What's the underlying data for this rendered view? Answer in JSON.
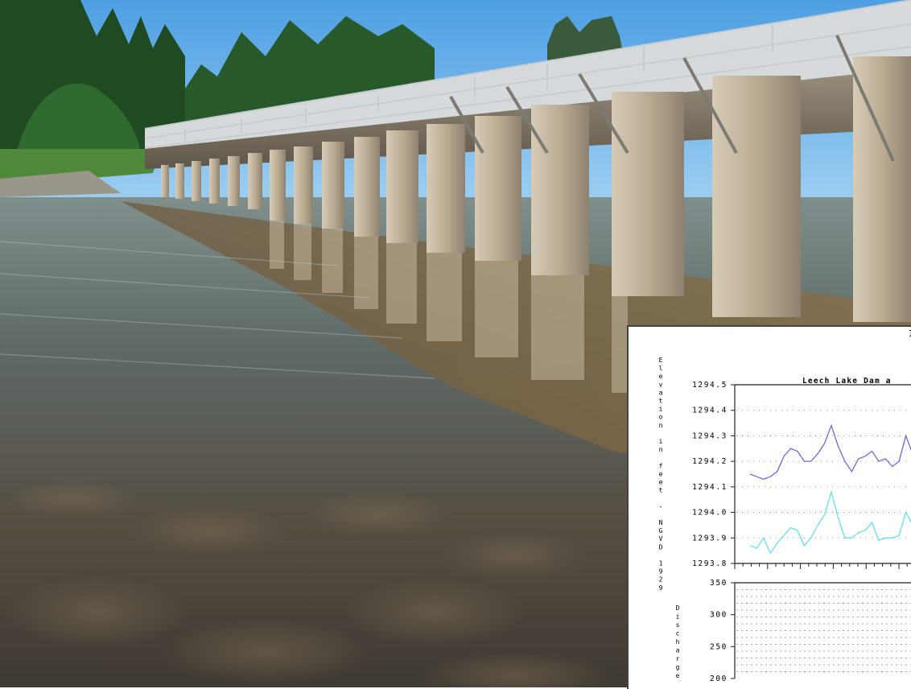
{
  "photo": {
    "subject": "concrete dam with piers and walkway railing over calm water",
    "colors": {
      "sky": "#5aa8e6",
      "trees": "#1f4a22",
      "concrete": "#b8ab95",
      "water_near": "#4e4a40",
      "water_far": "#6d7f86"
    }
  },
  "chart": {
    "corner_label": "I",
    "title": "Leech Lake Dam a",
    "top_ylabel": "Elevation in feet - NGVD 1929",
    "bottom_ylabel": "Discharge i",
    "colors": {
      "series1": "#6a6ae6",
      "series2": "#5fe3ee",
      "grid": "#888888",
      "axis": "#222222"
    }
  },
  "chart_data": [
    {
      "type": "line",
      "title": "Leech Lake Dam a",
      "ylabel": "Elevation in feet - NGVD 1929",
      "ylim": [
        1293.8,
        1294.5
      ],
      "yticks": [
        "1294.5",
        "1294.4",
        "1294.3",
        "1294.2",
        "1294.1",
        "1294.0",
        "1293.9",
        "1293.8"
      ],
      "series": [
        {
          "color": "#6a6ae6",
          "values": [
            1294.15,
            1294.14,
            1294.13,
            1294.14,
            1294.16,
            1294.22,
            1294.25,
            1294.24,
            1294.2,
            1294.2,
            1294.23,
            1294.27,
            1294.34,
            1294.26,
            1294.2,
            1294.16,
            1294.21,
            1294.22,
            1294.24,
            1294.2,
            1294.21,
            1294.18,
            1294.2,
            1294.3,
            1294.23
          ]
        },
        {
          "color": "#5fe3ee",
          "values": [
            1293.87,
            1293.86,
            1293.9,
            1293.84,
            1293.88,
            1293.91,
            1293.94,
            1293.93,
            1293.87,
            1293.9,
            1293.95,
            1293.99,
            1294.08,
            1293.98,
            1293.9,
            1293.9,
            1293.92,
            1293.93,
            1293.96,
            1293.89,
            1293.9,
            1293.9,
            1293.91,
            1294.0,
            1293.95
          ]
        }
      ]
    },
    {
      "type": "line",
      "ylabel": "Discharge i",
      "ylim": [
        200,
        350
      ],
      "yticks": [
        "350",
        "300",
        "250",
        "200"
      ],
      "series": []
    }
  ]
}
